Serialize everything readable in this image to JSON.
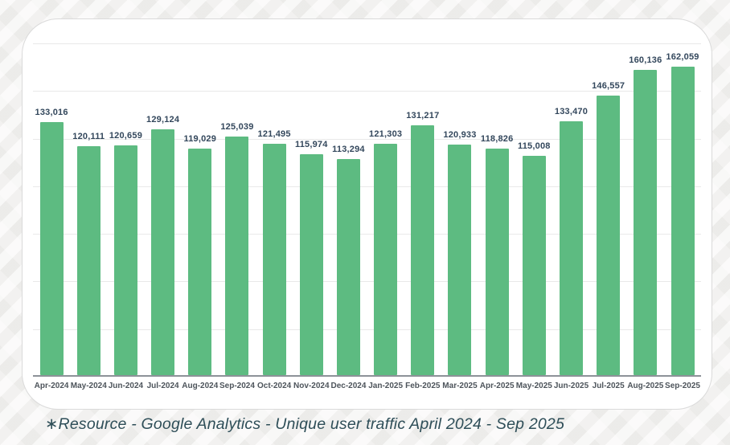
{
  "caption": {
    "text": "∗Resource - Google Analytics - Unique user traffic April 2024 - Sep 2025"
  },
  "chart_data": {
    "type": "bar",
    "title": "",
    "xlabel": "",
    "ylabel": "",
    "categories": [
      "Apr-2024",
      "May-2024",
      "Jun-2024",
      "Jul-2024",
      "Aug-2024",
      "Sep-2024",
      "Oct-2024",
      "Nov-2024",
      "Dec-2024",
      "Jan-2025",
      "Feb-2025",
      "Mar-2025",
      "Apr-2025",
      "May-2025",
      "Jun-2025",
      "Jul-2025",
      "Aug-2025",
      "Sep-2025"
    ],
    "values": [
      133016,
      120111,
      120659,
      129124,
      119029,
      125039,
      121495,
      115974,
      113294,
      121303,
      131217,
      120933,
      118826,
      115008,
      133470,
      146557,
      160136,
      162059
    ],
    "value_labels": [
      "133,016",
      "120,111",
      "120,659",
      "129,124",
      "119,029",
      "125,039",
      "121,495",
      "115,974",
      "113,294",
      "121,303",
      "131,217",
      "120,933",
      "118,826",
      "115,008",
      "133,470",
      "146,557",
      "160,136",
      "162,059"
    ],
    "ylim": [
      0,
      175000
    ],
    "grid_step": 25000,
    "grid": true,
    "legend_position": "none",
    "series_name": "Unique user traffic"
  },
  "colors": {
    "bar": "#5dbb81",
    "value_label": "#33475c",
    "axis_line": "#8d9298",
    "gridline": "#e9e9e9",
    "x_label": "#4d545b",
    "caption_text": "#2e4e58",
    "card_background": "#ffffff",
    "card_border": "#dadada",
    "page_background": "#f3f2f0"
  }
}
